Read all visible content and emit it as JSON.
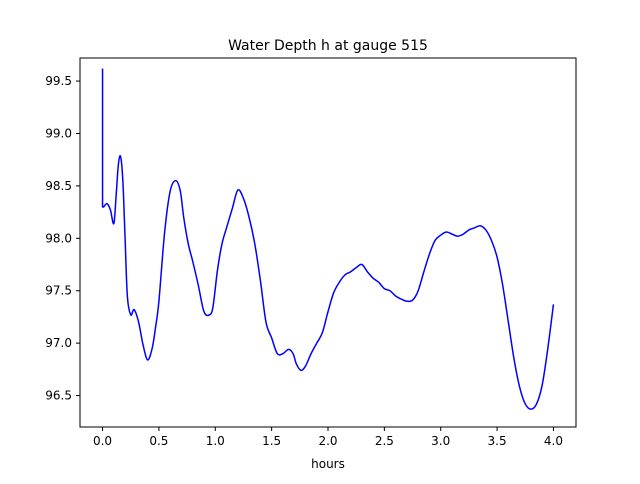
{
  "chart_data": {
    "type": "line",
    "title": "Water Depth h at gauge 515",
    "xlabel": "hours",
    "ylabel": "",
    "xlim": [
      -0.2,
      4.2
    ],
    "ylim": [
      96.2,
      99.72
    ],
    "xticks": [
      0.0,
      0.5,
      1.0,
      1.5,
      2.0,
      2.5,
      3.0,
      3.5,
      4.0
    ],
    "xtick_labels": [
      "0.0",
      "0.5",
      "1.0",
      "1.5",
      "2.0",
      "2.5",
      "3.0",
      "3.5",
      "4.0"
    ],
    "yticks": [
      96.5,
      97.0,
      97.5,
      98.0,
      98.5,
      99.0,
      99.5
    ],
    "ytick_labels": [
      "96.5",
      "97.0",
      "97.5",
      "98.0",
      "98.5",
      "99.0",
      "99.5"
    ],
    "grid": false,
    "legend": "none",
    "series": [
      {
        "color": "#0000ff",
        "x": [
          0.0,
          0.0,
          0.01,
          0.04,
          0.07,
          0.1,
          0.12,
          0.14,
          0.16,
          0.18,
          0.2,
          0.22,
          0.25,
          0.28,
          0.32,
          0.36,
          0.4,
          0.44,
          0.47,
          0.5,
          0.55,
          0.6,
          0.65,
          0.69,
          0.72,
          0.76,
          0.8,
          0.85,
          0.9,
          0.95,
          0.98,
          1.02,
          1.06,
          1.1,
          1.15,
          1.2,
          1.25,
          1.3,
          1.35,
          1.4,
          1.45,
          1.5,
          1.55,
          1.6,
          1.65,
          1.69,
          1.72,
          1.76,
          1.8,
          1.85,
          1.9,
          1.95,
          2.0,
          2.05,
          2.1,
          2.15,
          2.2,
          2.25,
          2.3,
          2.35,
          2.4,
          2.45,
          2.5,
          2.55,
          2.6,
          2.65,
          2.7,
          2.75,
          2.8,
          2.85,
          2.9,
          2.95,
          3.0,
          3.05,
          3.1,
          3.15,
          3.2,
          3.25,
          3.3,
          3.35,
          3.4,
          3.45,
          3.5,
          3.55,
          3.6,
          3.65,
          3.7,
          3.75,
          3.8,
          3.85,
          3.9,
          3.95,
          4.0
        ],
        "y": [
          99.62,
          98.3,
          98.3,
          98.33,
          98.27,
          98.14,
          98.4,
          98.7,
          98.78,
          98.55,
          98.0,
          97.45,
          97.27,
          97.32,
          97.2,
          96.98,
          96.84,
          96.95,
          97.15,
          97.4,
          98.05,
          98.45,
          98.55,
          98.45,
          98.2,
          97.95,
          97.78,
          97.55,
          97.3,
          97.27,
          97.35,
          97.7,
          97.95,
          98.1,
          98.28,
          98.46,
          98.38,
          98.2,
          97.95,
          97.6,
          97.2,
          97.05,
          96.9,
          96.9,
          96.94,
          96.9,
          96.8,
          96.74,
          96.78,
          96.9,
          97.0,
          97.1,
          97.3,
          97.48,
          97.58,
          97.65,
          97.68,
          97.72,
          97.75,
          97.68,
          97.62,
          97.58,
          97.52,
          97.5,
          97.45,
          97.42,
          97.4,
          97.41,
          97.5,
          97.68,
          97.85,
          97.98,
          98.03,
          98.06,
          98.04,
          98.02,
          98.04,
          98.08,
          98.1,
          98.12,
          98.08,
          97.98,
          97.82,
          97.55,
          97.2,
          96.85,
          96.58,
          96.42,
          96.37,
          96.42,
          96.6,
          96.95,
          97.37
        ]
      }
    ]
  }
}
